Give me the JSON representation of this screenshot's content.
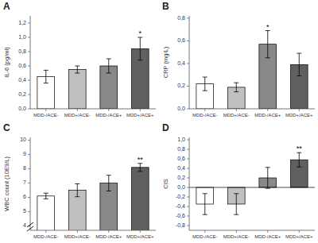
{
  "chart_data": [
    {
      "type": "bar",
      "title": "A",
      "ylabel": "IL-6 (pg/ml)",
      "categories": [
        "MDD-/ACE-",
        "MDD+/ACE-",
        "MDD-/ACE+",
        "MDD+/ACE+"
      ],
      "values": [
        0.45,
        0.55,
        0.6,
        0.84
      ],
      "errors": [
        0.09,
        0.05,
        0.1,
        0.16
      ],
      "colors": [
        "white",
        "#c0c0c0",
        "#888888",
        "#606060"
      ],
      "annotations": [
        {
          "text": "*",
          "category": "MDD+/ACE+"
        }
      ],
      "ylim": [
        0.0,
        1.3
      ],
      "yticks": [
        {
          "value": 0.0,
          "label": "0,0"
        },
        {
          "value": 0.2,
          "label": "0,2"
        },
        {
          "value": 0.4,
          "label": "0,4"
        },
        {
          "value": 0.6,
          "label": "0,6"
        },
        {
          "value": 0.8,
          "label": "0,8"
        },
        {
          "value": 1.0,
          "label": "1,0"
        },
        {
          "value": 1.2,
          "label": "1,2"
        }
      ],
      "grid": false
    },
    {
      "type": "bar",
      "title": "B",
      "ylabel": "CRP (mg/L)",
      "categories": [
        "MDD-/ACE-",
        "MDD+/ACE-",
        "MDD-/ACE+",
        "MDD+/ACE+"
      ],
      "values": [
        0.22,
        0.19,
        0.57,
        0.39
      ],
      "errors": [
        0.06,
        0.04,
        0.12,
        0.1
      ],
      "colors": [
        "white",
        "#c0c0c0",
        "#888888",
        "#606060"
      ],
      "annotations": [
        {
          "text": "*",
          "category": "MDD-/ACE+"
        }
      ],
      "ylim": [
        0.0,
        0.82
      ],
      "yticks": [
        {
          "value": 0.0,
          "label": "0,0"
        },
        {
          "value": 0.2,
          "label": "0,2"
        },
        {
          "value": 0.4,
          "label": "0,4"
        },
        {
          "value": 0.6,
          "label": "0,6"
        },
        {
          "value": 0.8,
          "label": "0,8"
        }
      ],
      "grid": false
    },
    {
      "type": "bar",
      "title": "C",
      "ylabel": "WBC count (10E9/L)",
      "categories": [
        "MDD-/ACE-",
        "MDD+/ACE-",
        "MDD-/ACE+",
        "MDD+/ACE+"
      ],
      "values": [
        6.1,
        6.5,
        7.0,
        8.1
      ],
      "errors": [
        0.2,
        0.45,
        0.55,
        0.28
      ],
      "colors": [
        "white",
        "#c0c0c0",
        "#888888",
        "#606060"
      ],
      "annotations": [
        {
          "text": "**",
          "category": "MDD+/ACE+"
        }
      ],
      "ylim": [
        3.7,
        10.2
      ],
      "yticks": [
        4,
        5,
        6,
        7,
        8,
        9,
        10
      ],
      "grid": false
    },
    {
      "type": "bar",
      "title": "D",
      "ylabel": "CIS",
      "categories": [
        "MDD-/ACE-",
        "MDD+/ACE-",
        "MDD-/ACE+",
        "MDD+/ACE+"
      ],
      "values": [
        -0.35,
        -0.35,
        0.2,
        0.58
      ],
      "errors": [
        0.22,
        0.22,
        0.22,
        0.15
      ],
      "colors": [
        "white",
        "#c0c0c0",
        "#888888",
        "#606060"
      ],
      "annotations": [
        {
          "text": "**",
          "category": "MDD+/ACE+"
        }
      ],
      "ylim": [
        -0.9,
        1.05
      ],
      "yticks": [
        {
          "value": -0.8,
          "label": "-0,8"
        },
        {
          "value": -0.6,
          "label": "-0,6"
        },
        {
          "value": -0.4,
          "label": "-0,4"
        },
        {
          "value": -0.2,
          "label": "-0,2"
        },
        {
          "value": 0.0,
          "label": "0,0"
        },
        {
          "value": 0.2,
          "label": "0,2"
        },
        {
          "value": 0.4,
          "label": "0,4"
        },
        {
          "value": 0.6,
          "label": "0,6"
        },
        {
          "value": 0.8,
          "label": "0,8"
        },
        {
          "value": 1.0,
          "label": "1,0"
        }
      ],
      "grid": false
    }
  ]
}
